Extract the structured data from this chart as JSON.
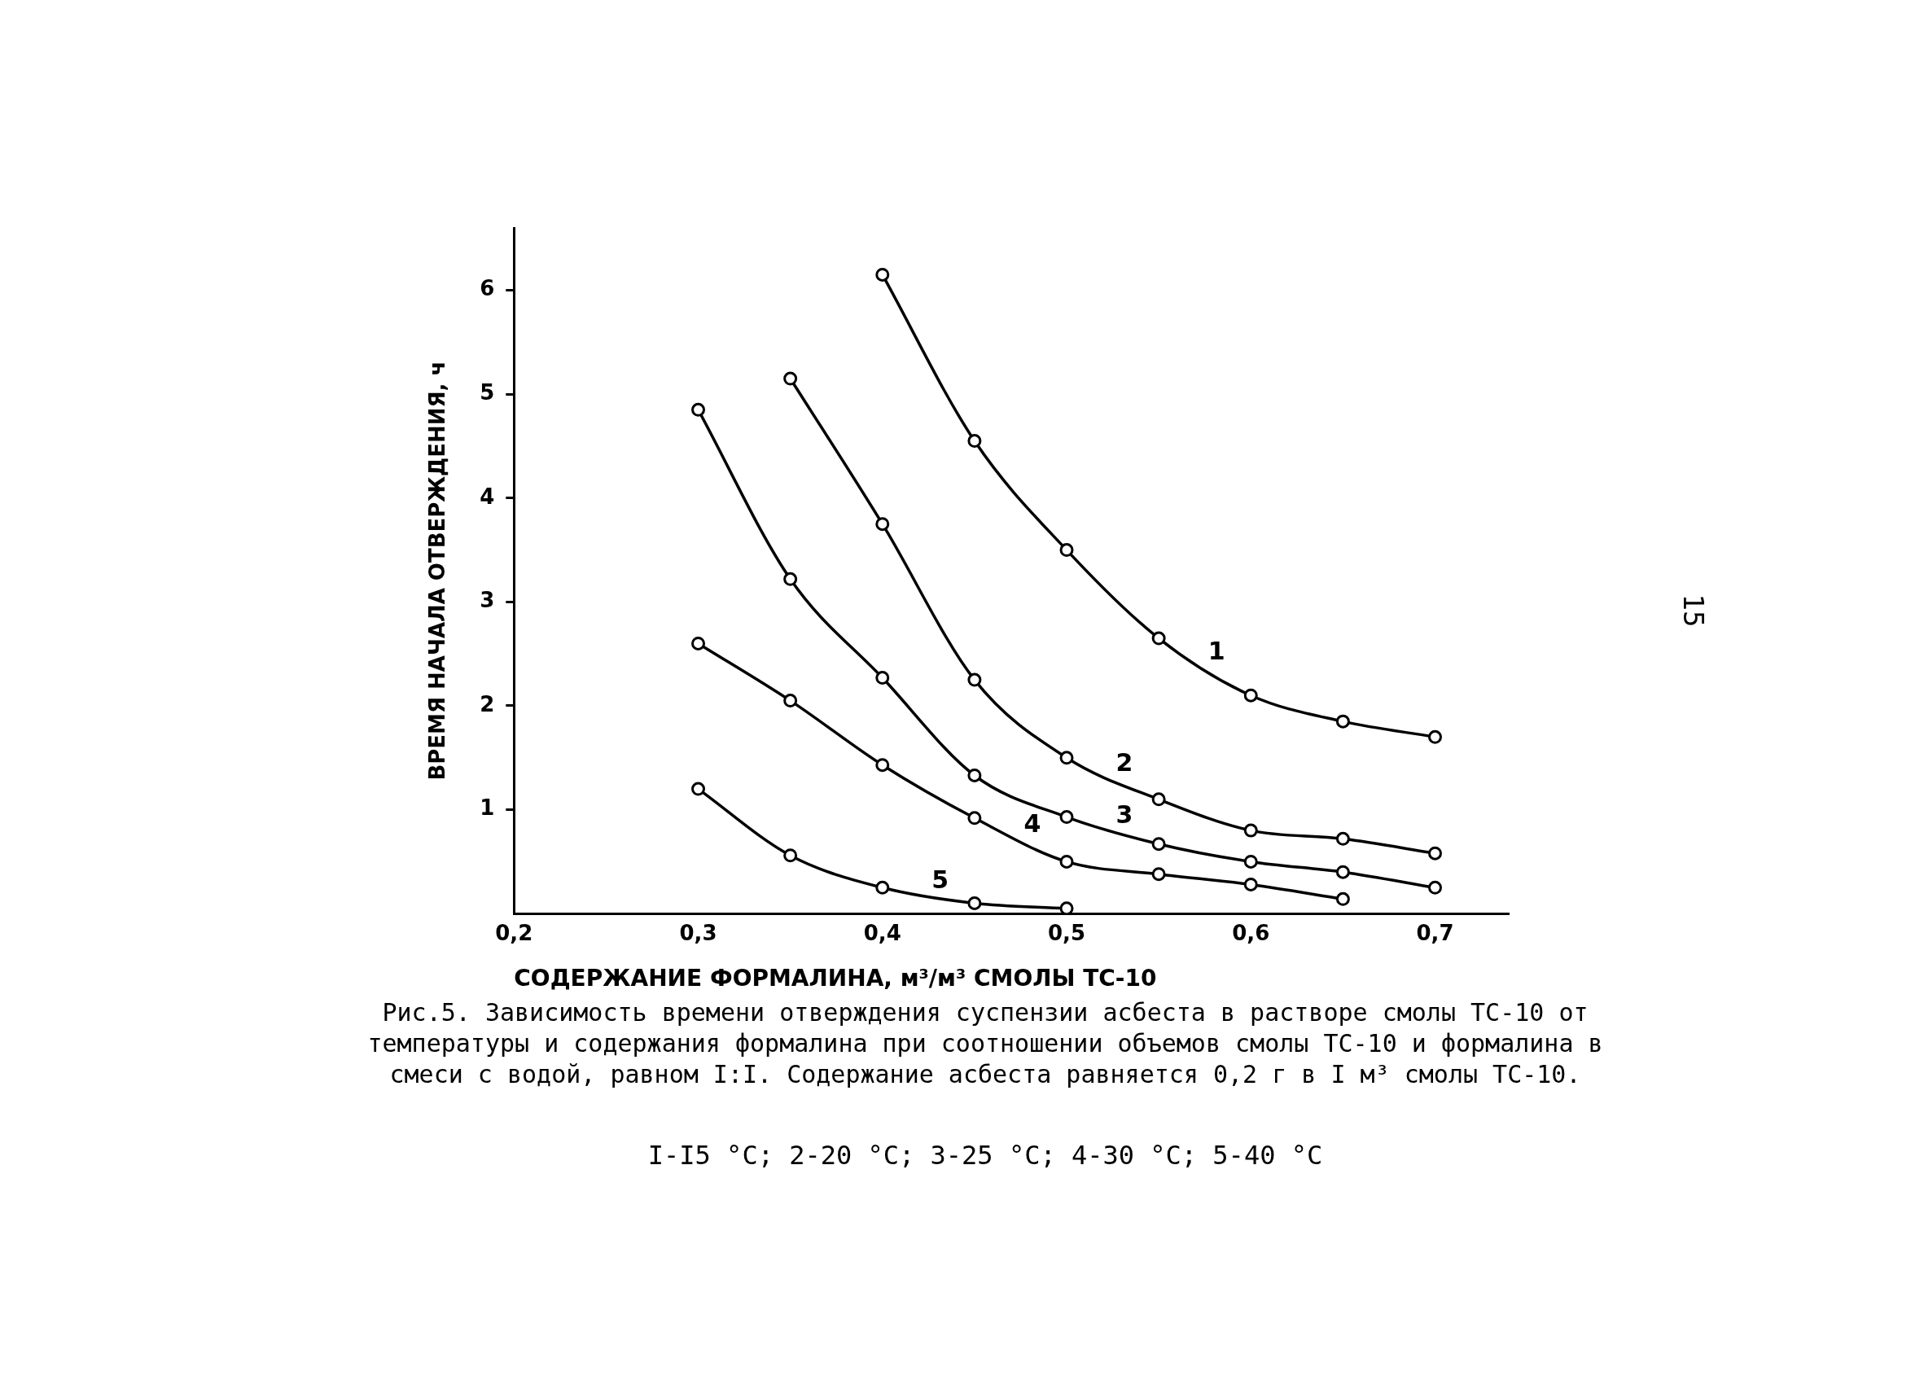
{
  "chart_data": {
    "type": "line",
    "title": "Рис.5. Зависимость времени отверждения суспензии асбеста в растворе смолы ТС-10 от температуры и содержания формалина при соотношении объемов смолы ТС-10 и формалина в смеси с водой, равном I:I. Содержание асбеста равняется 0,2 г в I м³ смолы ТС-10.",
    "xlabel": "СОДЕРЖАНИЕ ФОРМАЛИНА, м³/м³ СМОЛЫ ТС-10",
    "ylabel": "ВРЕМЯ НАЧАЛА ОТВЕРЖДЕНИЯ, ч",
    "annotations": [
      "I-I5 °C;  2-20 °C;  3-25 °C;  4-30 °C;  5-40 °C",
      "15"
    ],
    "xlim": [
      0.2,
      0.74
    ],
    "ylim": [
      0,
      6.6
    ],
    "xticks": [
      {
        "value": 0.2,
        "label": "0,2"
      },
      {
        "value": 0.3,
        "label": "0,3"
      },
      {
        "value": 0.4,
        "label": "0,4"
      },
      {
        "value": 0.5,
        "label": "0,5"
      },
      {
        "value": 0.6,
        "label": "0,6"
      },
      {
        "value": 0.7,
        "label": "0,7"
      }
    ],
    "yticks": [
      1,
      2,
      3,
      4,
      5,
      6
    ],
    "grid": false,
    "legend": false,
    "marker": "circle",
    "line_style": "solid",
    "series": [
      {
        "name": "1",
        "color": "#000000",
        "x": [
          0.4,
          0.45,
          0.5,
          0.55,
          0.6,
          0.65,
          0.7
        ],
        "values": [
          6.15,
          4.55,
          3.5,
          2.65,
          2.1,
          1.85,
          1.7
        ]
      },
      {
        "name": "2",
        "color": "#000000",
        "x": [
          0.35,
          0.4,
          0.45,
          0.5,
          0.55,
          0.6,
          0.65,
          0.7
        ],
        "values": [
          5.15,
          3.75,
          2.25,
          1.5,
          1.1,
          0.8,
          0.72,
          0.58
        ]
      },
      {
        "name": "3",
        "color": "#000000",
        "x": [
          0.3,
          0.35,
          0.4,
          0.45,
          0.5,
          0.55,
          0.6,
          0.65,
          0.7
        ],
        "values": [
          4.85,
          3.22,
          2.27,
          1.33,
          0.93,
          0.67,
          0.5,
          0.4,
          0.25
        ]
      },
      {
        "name": "4",
        "color": "#000000",
        "x": [
          0.3,
          0.35,
          0.4,
          0.45,
          0.5,
          0.55,
          0.6,
          0.65
        ],
        "values": [
          2.6,
          2.05,
          1.43,
          0.92,
          0.5,
          0.38,
          0.28,
          0.14
        ]
      },
      {
        "name": "5",
        "color": "#000000",
        "x": [
          0.3,
          0.35,
          0.4,
          0.45,
          0.5
        ],
        "values": [
          1.2,
          0.56,
          0.25,
          0.1,
          0.05
        ]
      }
    ]
  }
}
